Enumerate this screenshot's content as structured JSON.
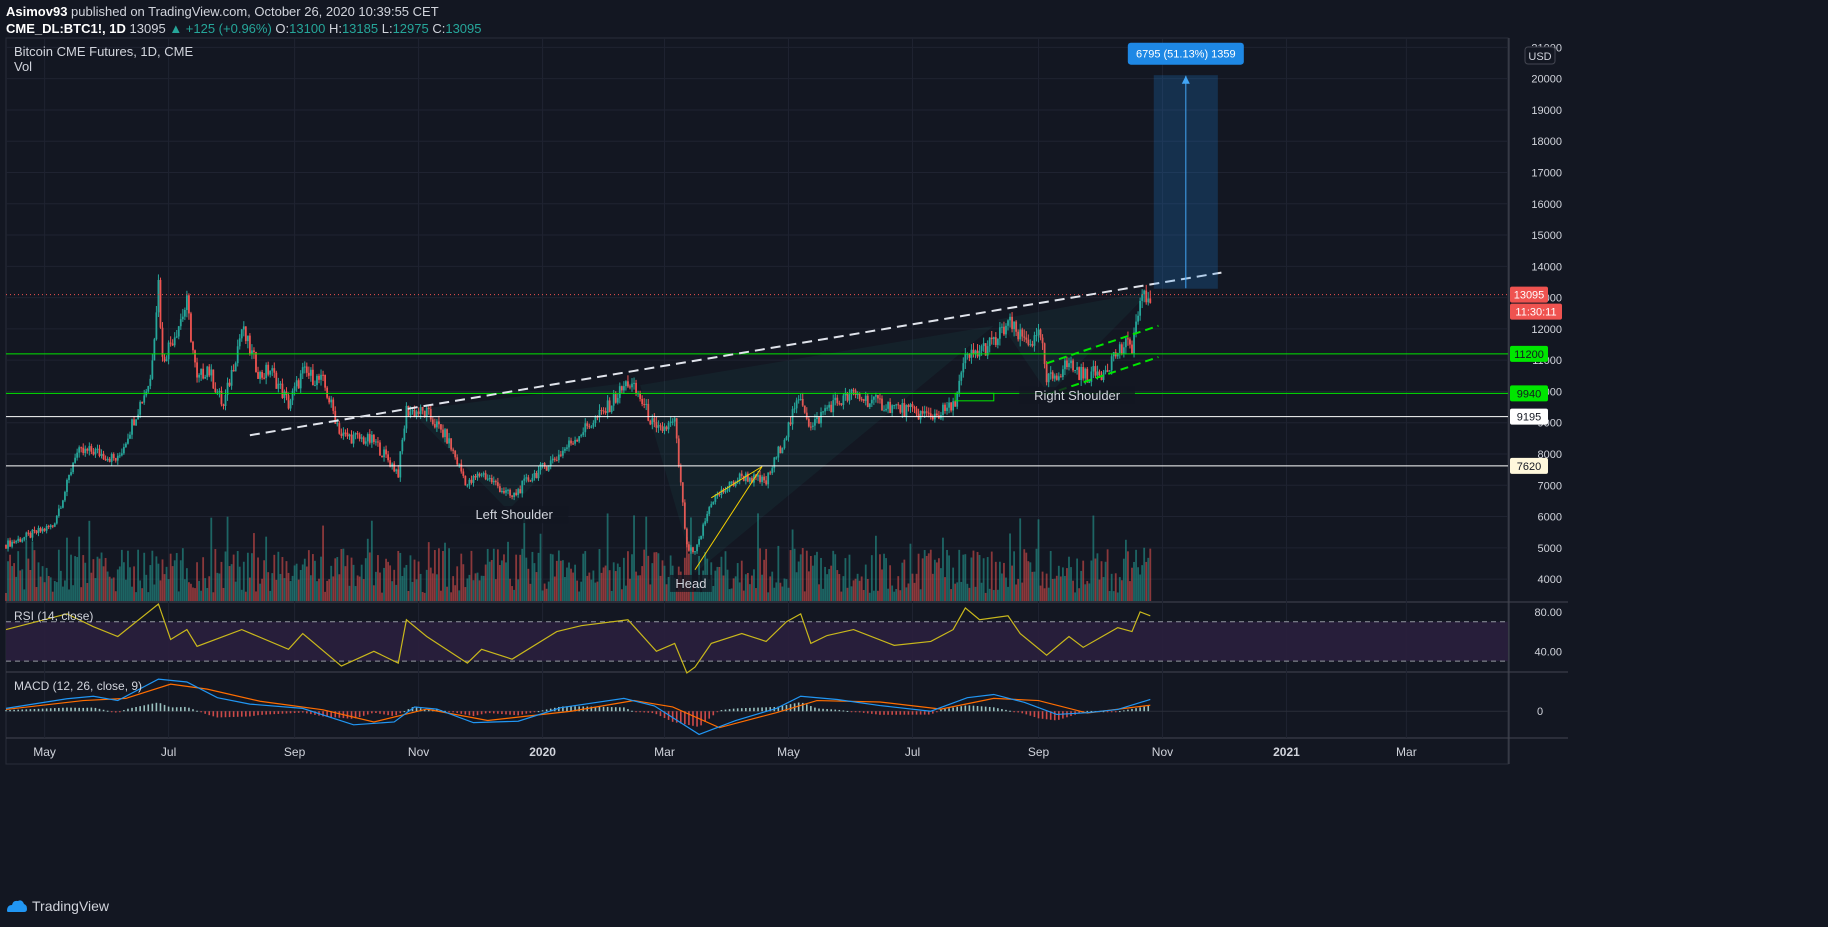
{
  "header": {
    "publisher": "Asimov93",
    "published_text": "published on TradingView.com, October 26, 2020 10:39:55 CET",
    "symbol": "CME_DL:BTC1!, 1D",
    "last": "13095",
    "change": "▲ +125 (+0.96%)",
    "ohlc": [
      {
        "k": "O:",
        "v": "13100"
      },
      {
        "k": "H:",
        "v": "13185"
      },
      {
        "k": "L:",
        "v": "12975"
      },
      {
        "k": "C:",
        "v": "13095"
      }
    ]
  },
  "legend": {
    "title": "Bitcoin CME Futures, 1D, CME",
    "vol": "Vol",
    "rsi": "RSI (14, close)",
    "macd": "MACD (12, 26, close, 9)"
  },
  "footer": {
    "brand": "TradingView"
  },
  "colors": {
    "background": "#131722",
    "up": "#26a69a",
    "down": "#ef5350",
    "rsi_line": "#c9b81c",
    "rsi_band": "#2a1f3d",
    "macd_line": "#2196f3",
    "signal_line": "#ff6d00",
    "green_level": "#00e600",
    "projection": "#1e88e5"
  },
  "chart_data": {
    "type": "candlestick",
    "title": "Bitcoin CME Futures, 1D, CME",
    "currency": "USD",
    "price_axis": {
      "ticks": [
        4000,
        5000,
        6000,
        7000,
        8000,
        9000,
        10000,
        11000,
        12000,
        13000,
        14000,
        15000,
        16000,
        17000,
        18000,
        19000,
        20000,
        21000
      ],
      "range": [
        3300,
        21300
      ]
    },
    "time_axis": {
      "labels": [
        "May",
        "Jul",
        "Sep",
        "Nov",
        "2020",
        "Mar",
        "May",
        "Jul",
        "Sep",
        "Nov",
        "2021",
        "Mar"
      ],
      "range": [
        "2019-04-12",
        "2021-04-20"
      ]
    },
    "price_path": [
      [
        "2019-04-12",
        5100
      ],
      [
        "2019-05-05",
        5700
      ],
      [
        "2019-05-12",
        7000
      ],
      [
        "2019-05-16",
        8000
      ],
      [
        "2019-05-25",
        8100
      ],
      [
        "2019-06-06",
        7800
      ],
      [
        "2019-06-15",
        9300
      ],
      [
        "2019-06-22",
        10400
      ],
      [
        "2019-06-26",
        13500
      ],
      [
        "2019-06-28",
        11000
      ],
      [
        "2019-07-05",
        12000
      ],
      [
        "2019-07-10",
        12800
      ],
      [
        "2019-07-15",
        10300
      ],
      [
        "2019-07-20",
        10800
      ],
      [
        "2019-07-28",
        9500
      ],
      [
        "2019-08-06",
        12000
      ],
      [
        "2019-08-15",
        10500
      ],
      [
        "2019-08-20",
        10700
      ],
      [
        "2019-08-29",
        9600
      ],
      [
        "2019-09-05",
        10600
      ],
      [
        "2019-09-15",
        10300
      ],
      [
        "2019-09-24",
        8600
      ],
      [
        "2019-10-10",
        8400
      ],
      [
        "2019-10-22",
        7400
      ],
      [
        "2019-10-26",
        9400
      ],
      [
        "2019-11-05",
        9300
      ],
      [
        "2019-11-15",
        8500
      ],
      [
        "2019-11-25",
        7000
      ],
      [
        "2019-12-02",
        7400
      ],
      [
        "2019-12-17",
        6600
      ],
      [
        "2019-12-25",
        7200
      ],
      [
        "2020-01-08",
        7900
      ],
      [
        "2020-01-20",
        8700
      ],
      [
        "2020-02-01",
        9400
      ],
      [
        "2020-02-12",
        10300
      ],
      [
        "2020-02-18",
        9800
      ],
      [
        "2020-02-26",
        8700
      ],
      [
        "2020-03-06",
        9000
      ],
      [
        "2020-03-12",
        5000
      ],
      [
        "2020-03-16",
        4800
      ],
      [
        "2020-03-24",
        6500
      ],
      [
        "2020-04-08",
        7300
      ],
      [
        "2020-04-20",
        7100
      ],
      [
        "2020-04-30",
        8700
      ],
      [
        "2020-05-07",
        9900
      ],
      [
        "2020-05-12",
        8800
      ],
      [
        "2020-05-20",
        9500
      ],
      [
        "2020-06-02",
        9900
      ],
      [
        "2020-06-10",
        9700
      ],
      [
        "2020-06-22",
        9500
      ],
      [
        "2020-07-10",
        9200
      ],
      [
        "2020-07-21",
        9500
      ],
      [
        "2020-07-27",
        11000
      ],
      [
        "2020-08-03",
        11300
      ],
      [
        "2020-08-11",
        11600
      ],
      [
        "2020-08-17",
        12200
      ],
      [
        "2020-08-23",
        11700
      ],
      [
        "2020-08-31",
        11600
      ],
      [
        "2020-09-02",
        11800
      ],
      [
        "2020-09-05",
        10300
      ],
      [
        "2020-09-16",
        10900
      ],
      [
        "2020-09-23",
        10500
      ],
      [
        "2020-10-02",
        10600
      ],
      [
        "2020-10-10",
        11300
      ],
      [
        "2020-10-17",
        11500
      ],
      [
        "2020-10-21",
        12800
      ],
      [
        "2020-10-26",
        13095
      ]
    ],
    "horizontal_levels": [
      {
        "price": 13095,
        "label": "13095",
        "style": "dotted-red"
      },
      {
        "price": 11200,
        "label": "11200",
        "style": "green"
      },
      {
        "price": 9940,
        "label": "9940",
        "style": "green"
      },
      {
        "price": 9195,
        "label": "9195",
        "style": "white"
      },
      {
        "price": 7620,
        "label": "7620",
        "style": "white"
      }
    ],
    "countdown_label": "11:30:11",
    "neckline": {
      "from": [
        "2019-08-10",
        8600
      ],
      "to": [
        "2020-11-30",
        13800
      ]
    },
    "pattern_labels": [
      "Left Shoulder",
      "Head",
      "Right Shoulder"
    ],
    "projection": {
      "label": "6795 (51.13%) 1359",
      "from_price": 13300,
      "to_price": 20095,
      "start": "2020-10-26",
      "end": "2020-11-28"
    },
    "rsi": {
      "levels": [
        70,
        30
      ],
      "ticks": [
        40,
        80
      ],
      "tick_labels": [
        "40.00",
        "80.00"
      ],
      "range": [
        20,
        90
      ],
      "path": [
        [
          "2019-04-12",
          62
        ],
        [
          "2019-05-12",
          78
        ],
        [
          "2019-05-25",
          65
        ],
        [
          "2019-06-06",
          55
        ],
        [
          "2019-06-26",
          88
        ],
        [
          "2019-07-02",
          52
        ],
        [
          "2019-07-10",
          62
        ],
        [
          "2019-07-15",
          45
        ],
        [
          "2019-08-06",
          62
        ],
        [
          "2019-08-29",
          42
        ],
        [
          "2019-09-05",
          58
        ],
        [
          "2019-09-24",
          25
        ],
        [
          "2019-10-10",
          40
        ],
        [
          "2019-10-22",
          28
        ],
        [
          "2019-10-26",
          72
        ],
        [
          "2019-11-05",
          55
        ],
        [
          "2019-11-25",
          28
        ],
        [
          "2019-12-02",
          42
        ],
        [
          "2019-12-17",
          32
        ],
        [
          "2020-01-08",
          60
        ],
        [
          "2020-01-20",
          66
        ],
        [
          "2020-02-12",
          72
        ],
        [
          "2020-02-26",
          40
        ],
        [
          "2020-03-06",
          48
        ],
        [
          "2020-03-12",
          18
        ],
        [
          "2020-03-16",
          24
        ],
        [
          "2020-03-24",
          48
        ],
        [
          "2020-04-08",
          58
        ],
        [
          "2020-04-20",
          50
        ],
        [
          "2020-04-30",
          70
        ],
        [
          "2020-05-07",
          78
        ],
        [
          "2020-05-12",
          48
        ],
        [
          "2020-05-20",
          56
        ],
        [
          "2020-06-02",
          62
        ],
        [
          "2020-06-22",
          46
        ],
        [
          "2020-07-10",
          50
        ],
        [
          "2020-07-21",
          62
        ],
        [
          "2020-07-27",
          84
        ],
        [
          "2020-08-03",
          72
        ],
        [
          "2020-08-17",
          76
        ],
        [
          "2020-08-23",
          58
        ],
        [
          "2020-09-05",
          36
        ],
        [
          "2020-09-16",
          55
        ],
        [
          "2020-09-23",
          44
        ],
        [
          "2020-10-10",
          64
        ],
        [
          "2020-10-17",
          60
        ],
        [
          "2020-10-21",
          80
        ],
        [
          "2020-10-26",
          76
        ]
      ]
    },
    "macd": {
      "ticks": [
        0
      ],
      "tick_labels": [
        "0"
      ],
      "range": [
        -750,
        1100
      ],
      "macd_path": [
        [
          "2019-04-12",
          80
        ],
        [
          "2019-05-12",
          350
        ],
        [
          "2019-05-25",
          420
        ],
        [
          "2019-06-06",
          300
        ],
        [
          "2019-06-26",
          900
        ],
        [
          "2019-07-10",
          820
        ],
        [
          "2019-07-25",
          380
        ],
        [
          "2019-08-10",
          200
        ],
        [
          "2019-09-05",
          80
        ],
        [
          "2019-09-30",
          -380
        ],
        [
          "2019-10-20",
          -300
        ],
        [
          "2019-10-30",
          120
        ],
        [
          "2019-11-10",
          60
        ],
        [
          "2019-11-28",
          -320
        ],
        [
          "2019-12-20",
          -280
        ],
        [
          "2020-01-10",
          100
        ],
        [
          "2020-02-10",
          360
        ],
        [
          "2020-02-25",
          150
        ],
        [
          "2020-03-18",
          -650
        ],
        [
          "2020-04-05",
          -260
        ],
        [
          "2020-04-25",
          80
        ],
        [
          "2020-05-07",
          420
        ],
        [
          "2020-05-25",
          330
        ],
        [
          "2020-06-15",
          160
        ],
        [
          "2020-07-10",
          0
        ],
        [
          "2020-07-28",
          380
        ],
        [
          "2020-08-10",
          470
        ],
        [
          "2020-08-25",
          250
        ],
        [
          "2020-09-10",
          -90
        ],
        [
          "2020-09-25",
          -40
        ],
        [
          "2020-10-10",
          50
        ],
        [
          "2020-10-26",
          330
        ]
      ],
      "signal_path": [
        [
          "2019-04-12",
          50
        ],
        [
          "2019-05-20",
          300
        ],
        [
          "2019-06-10",
          360
        ],
        [
          "2019-07-02",
          760
        ],
        [
          "2019-07-20",
          620
        ],
        [
          "2019-08-15",
          280
        ],
        [
          "2019-09-15",
          40
        ],
        [
          "2019-10-10",
          -300
        ],
        [
          "2019-11-05",
          60
        ],
        [
          "2019-12-05",
          -260
        ],
        [
          "2020-01-15",
          0
        ],
        [
          "2020-02-15",
          300
        ],
        [
          "2020-03-05",
          120
        ],
        [
          "2020-03-28",
          -460
        ],
        [
          "2020-04-25",
          -40
        ],
        [
          "2020-05-15",
          300
        ],
        [
          "2020-06-15",
          260
        ],
        [
          "2020-07-15",
          60
        ],
        [
          "2020-08-10",
          360
        ],
        [
          "2020-09-01",
          300
        ],
        [
          "2020-09-25",
          -50
        ],
        [
          "2020-10-26",
          170
        ]
      ]
    },
    "volume_axis_max": 50000
  }
}
